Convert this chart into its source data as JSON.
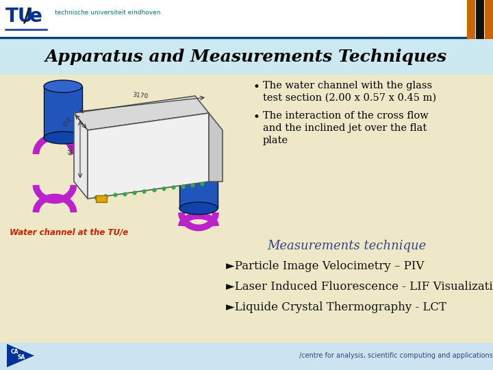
{
  "title": "Apparatus and Measurements Techniques",
  "header_bg": "#ffffff",
  "slide_bg": "#eee8c8",
  "footer_bg": "#cce4f0",
  "tue_color": "#003399",
  "tue_sub_color": "#007777",
  "title_color": "#000000",
  "title_fontsize": 18,
  "bullet1_line1": "The water channel with the glass",
  "bullet1_line2": "test section (2.00 x 0.57 x 0.45 m)",
  "bullet2_line1": "The interaction of the cross flow",
  "bullet2_line2": "and the inclined jet over the flat",
  "bullet2_line3": "plate",
  "caption_text": "Water channel at the TU/e",
  "caption_color": "#cc2200",
  "meas_title": "Measurements technique",
  "meas_color": "#334488",
  "item1": "►Particle Image Velocimetry – PIV",
  "item2": "►Laser Induced Fluorescence - LIF Visualization",
  "item3": "►Liquide Crystal Thermography - LCT",
  "item_color": "#111111",
  "footer_text": "/centre for analysis, scientific computing and applications",
  "footer_text_color": "#334488",
  "stripe_orange": "#cc6600",
  "stripe_black": "#111111",
  "header_sep_color": "#003366",
  "header_sep2_color": "#aaddee"
}
